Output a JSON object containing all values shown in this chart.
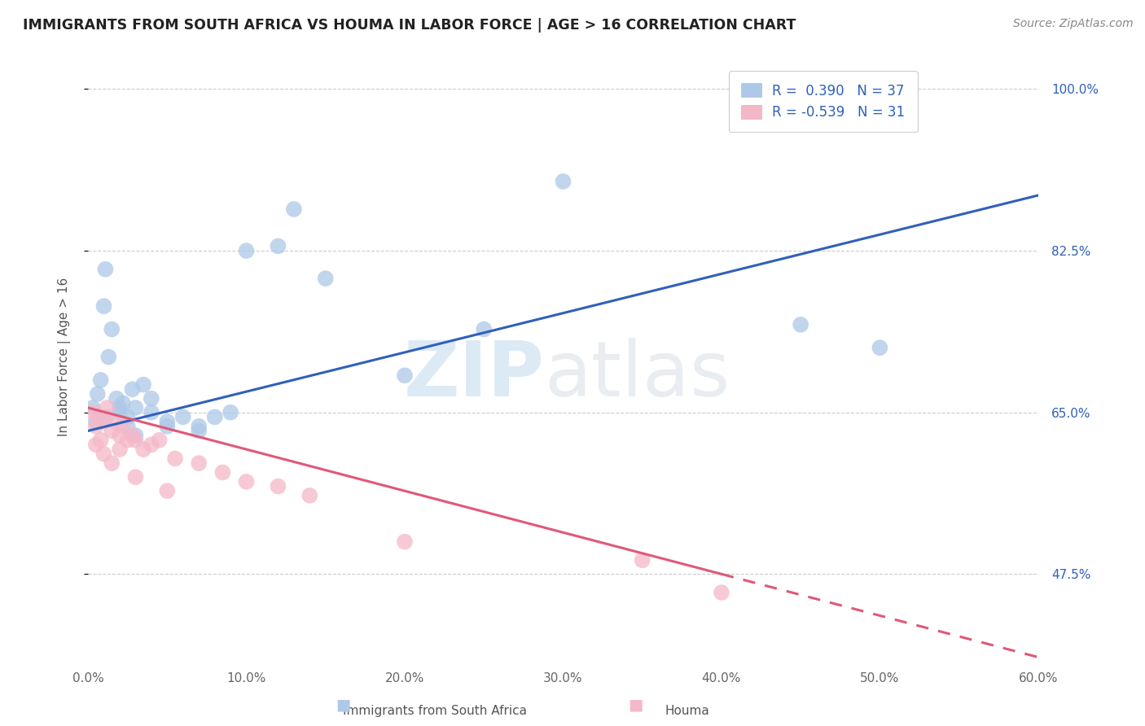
{
  "title": "IMMIGRANTS FROM SOUTH AFRICA VS HOUMA IN LABOR FORCE | AGE > 16 CORRELATION CHART",
  "source": "Source: ZipAtlas.com",
  "ylabel": "In Labor Force | Age > 16",
  "r_blue": 0.39,
  "n_blue": 37,
  "r_pink": -0.539,
  "n_pink": 31,
  "xlim": [
    0.0,
    60.0
  ],
  "ylim": [
    38.0,
    104.0
  ],
  "yticks": [
    47.5,
    65.0,
    82.5,
    100.0
  ],
  "xticks": [
    0.0,
    10.0,
    20.0,
    30.0,
    40.0,
    50.0,
    60.0
  ],
  "blue_color": "#adc8e8",
  "pink_color": "#f5b8c8",
  "blue_line_color": "#3060bb",
  "pink_line_color": "#e05878",
  "background_color": "#ffffff",
  "blue_scatter_x": [
    0.3,
    0.5,
    0.6,
    0.8,
    1.0,
    1.1,
    1.3,
    1.5,
    1.8,
    2.0,
    2.2,
    2.5,
    2.8,
    3.0,
    3.5,
    4.0,
    5.0,
    6.0,
    7.0,
    8.0,
    10.0,
    12.0,
    15.0,
    20.0,
    25.0,
    45.0,
    1.2,
    2.0,
    2.5,
    3.0,
    4.0,
    5.0,
    7.0,
    9.0,
    13.0,
    30.0,
    50.0
  ],
  "blue_scatter_y": [
    65.5,
    64.0,
    67.0,
    68.5,
    76.5,
    80.5,
    71.0,
    74.0,
    66.5,
    65.0,
    66.0,
    64.5,
    67.5,
    65.5,
    68.0,
    66.5,
    63.5,
    64.5,
    63.0,
    64.5,
    82.5,
    83.0,
    79.5,
    69.0,
    74.0,
    74.5,
    64.5,
    65.5,
    63.5,
    62.5,
    65.0,
    64.0,
    63.5,
    65.0,
    87.0,
    90.0,
    72.0
  ],
  "pink_scatter_x": [
    0.3,
    0.5,
    0.7,
    0.8,
    1.0,
    1.2,
    1.5,
    1.7,
    2.0,
    2.2,
    2.5,
    2.8,
    3.0,
    3.5,
    4.0,
    4.5,
    5.5,
    7.0,
    8.5,
    10.0,
    12.0,
    14.0,
    20.0,
    35.0,
    40.0,
    0.5,
    1.0,
    1.5,
    2.0,
    3.0,
    5.0
  ],
  "pink_scatter_y": [
    65.0,
    63.5,
    64.5,
    62.0,
    64.0,
    65.5,
    63.0,
    64.0,
    62.5,
    63.5,
    62.0,
    62.5,
    62.0,
    61.0,
    61.5,
    62.0,
    60.0,
    59.5,
    58.5,
    57.5,
    57.0,
    56.0,
    51.0,
    49.0,
    45.5,
    61.5,
    60.5,
    59.5,
    61.0,
    58.0,
    56.5
  ],
  "blue_line_x0": 0.0,
  "blue_line_y0": 63.0,
  "blue_line_x1": 60.0,
  "blue_line_y1": 88.5,
  "pink_line_x0": 0.0,
  "pink_line_y0": 65.5,
  "pink_line_x1": 60.0,
  "pink_line_y1": 38.5,
  "pink_dash_start_x": 40.0
}
